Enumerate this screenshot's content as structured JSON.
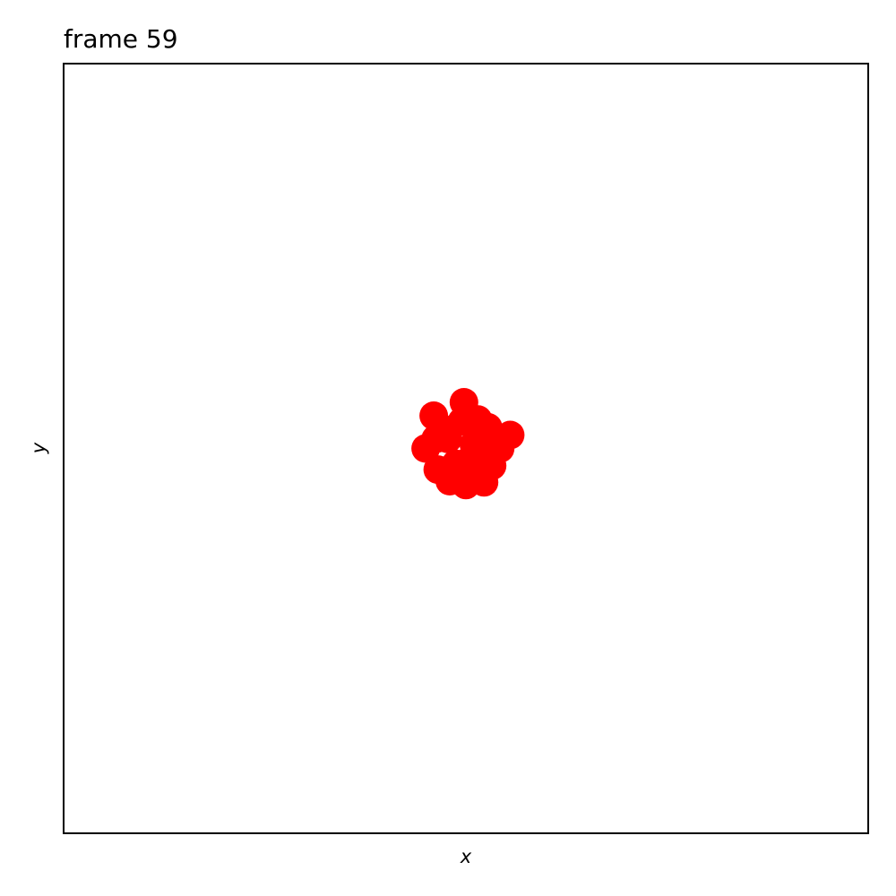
{
  "chart_data": {
    "type": "scatter",
    "title": "frame 59",
    "xlabel": "x",
    "ylabel": "y",
    "xlim": [
      -1,
      1
    ],
    "ylim": [
      -1,
      1
    ],
    "grid": false,
    "show_ticks": false,
    "marker_color": "#ff0000",
    "series": [
      {
        "points": [
          {
            "x": -0.08,
            "y": 0.085
          },
          {
            "x": -0.005,
            "y": 0.12
          },
          {
            "x": 0.055,
            "y": 0.055
          },
          {
            "x": 0.11,
            "y": 0.035
          },
          {
            "x": 0.085,
            "y": 0.0
          },
          {
            "x": -0.1,
            "y": 0.0
          },
          {
            "x": -0.045,
            "y": 0.025
          },
          {
            "x": 0.02,
            "y": 0.01
          },
          {
            "x": -0.07,
            "y": -0.055
          },
          {
            "x": 0.065,
            "y": -0.045
          },
          {
            "x": -0.04,
            "y": -0.085
          },
          {
            "x": 0.0,
            "y": -0.095
          },
          {
            "x": 0.045,
            "y": -0.088
          },
          {
            "x": -0.01,
            "y": 0.07
          },
          {
            "x": 0.03,
            "y": 0.075
          },
          {
            "x": -0.055,
            "y": 0.05
          },
          {
            "x": 0.01,
            "y": -0.03
          },
          {
            "x": -0.025,
            "y": -0.04
          },
          {
            "x": 0.04,
            "y": -0.015
          },
          {
            "x": -0.075,
            "y": 0.025
          }
        ]
      }
    ]
  }
}
